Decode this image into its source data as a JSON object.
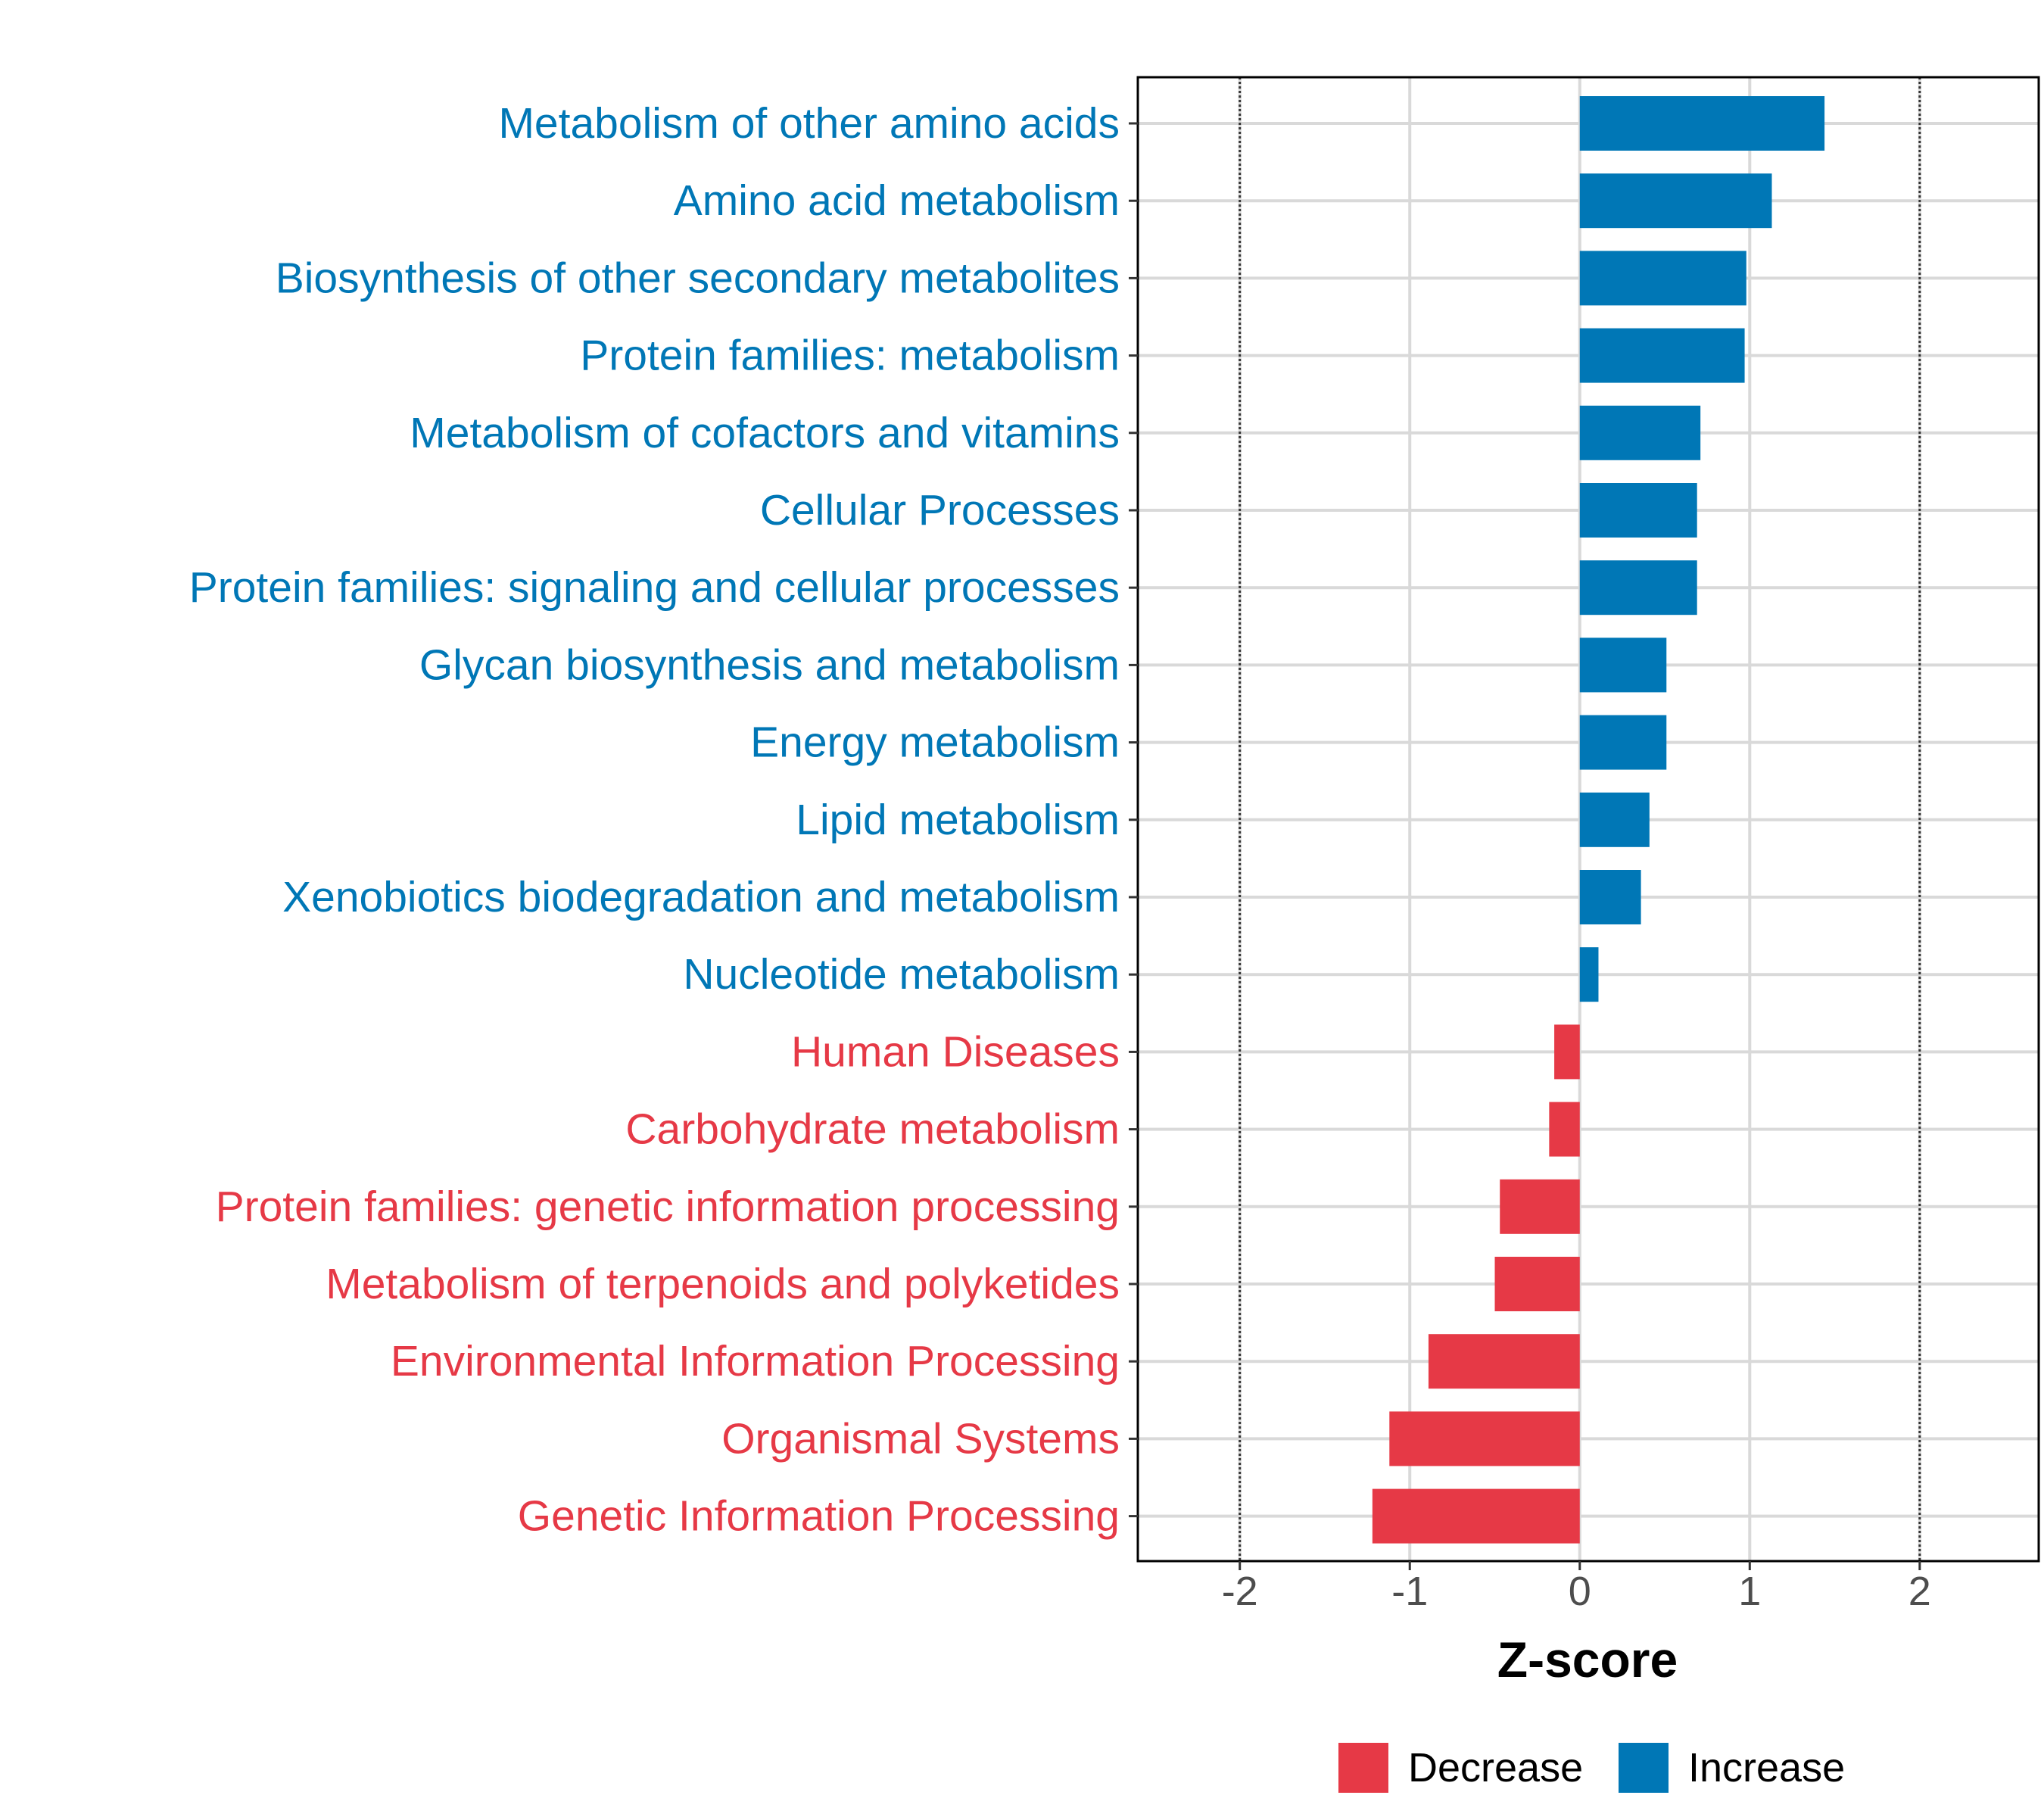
{
  "chart_data": {
    "type": "bar",
    "orientation": "horizontal",
    "xlabel": "Z-score",
    "ylabel": "",
    "xlim": [
      -2.6,
      2.7
    ],
    "xticks": [
      -2,
      -1,
      0,
      1,
      2
    ],
    "xtick_labels": [
      "-2",
      "-1",
      "0",
      "1",
      "2"
    ],
    "reference_lines": [
      -2,
      2
    ],
    "grid": true,
    "legend_position": "bottom",
    "colors": {
      "Decrease": "#e63946",
      "Increase": "#0077b6"
    },
    "legend": [
      {
        "label": "Decrease",
        "group": "Decrease"
      },
      {
        "label": "Increase",
        "group": "Increase"
      }
    ],
    "categories": [
      "Metabolism of other amino acids",
      "Amino acid metabolism",
      "Biosynthesis of other secondary metabolites",
      "Protein families: metabolism",
      "Metabolism of cofactors and vitamins",
      "Cellular Processes",
      "Protein families: signaling and cellular processes",
      "Glycan biosynthesis and metabolism",
      "Energy metabolism",
      "Lipid metabolism",
      "Xenobiotics biodegradation and metabolism",
      "Nucleotide metabolism",
      "Human Diseases",
      "Carbohydrate metabolism",
      "Protein families: genetic information processing",
      "Metabolism of terpenoids and polyketides",
      "Environmental Information Processing",
      "Organismal Systems",
      "Genetic Information Processing"
    ],
    "values": [
      1.44,
      1.13,
      0.98,
      0.97,
      0.71,
      0.69,
      0.69,
      0.51,
      0.51,
      0.41,
      0.36,
      0.11,
      -0.15,
      -0.18,
      -0.47,
      -0.5,
      -0.89,
      -1.12,
      -1.22
    ],
    "groups": [
      "Increase",
      "Increase",
      "Increase",
      "Increase",
      "Increase",
      "Increase",
      "Increase",
      "Increase",
      "Increase",
      "Increase",
      "Increase",
      "Increase",
      "Decrease",
      "Decrease",
      "Decrease",
      "Decrease",
      "Decrease",
      "Decrease",
      "Decrease"
    ]
  }
}
